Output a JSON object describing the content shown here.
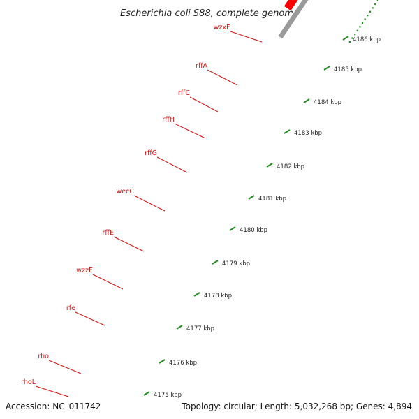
{
  "title": "Escherichia coli S88, complete genome",
  "footer": {
    "accession": "Accession: NC_011742",
    "summary": "Topology: circular; Length: 5,032,268 bp; Genes: 4,894"
  },
  "colors": {
    "forward_gene": "#ff0000",
    "reverse_gene": "#6b8e23",
    "gene_alt": "#ff8c00",
    "unknown_gene": "#cccccc",
    "label_color": "#cc1111",
    "tick_color": "#228b22",
    "backbone": "#9a9a9a"
  },
  "genes": [
    {
      "name": "wzxE",
      "strand": "reverse",
      "color": "unknown_gene"
    },
    {
      "name": "rffA",
      "strand": "reverse",
      "color": "reverse_gene"
    },
    {
      "name": "rffC",
      "strand": "reverse",
      "color": "unknown_gene"
    },
    {
      "name": "rffH",
      "strand": "reverse",
      "color": "reverse_gene"
    },
    {
      "name": "rffG",
      "strand": "reverse",
      "color": "reverse_gene"
    },
    {
      "name": "wecC",
      "strand": "reverse",
      "color": "reverse_gene"
    },
    {
      "name": "rffE",
      "strand": "reverse",
      "color": "reverse_gene"
    },
    {
      "name": "wzzE",
      "strand": "reverse",
      "color": "reverse_gene"
    },
    {
      "name": "rfe",
      "strand": "reverse",
      "color": "reverse_gene"
    },
    {
      "name": "rho",
      "strand": "reverse",
      "color": "gene_alt"
    },
    {
      "name": "rhoL",
      "strand": "reverse",
      "color": "gene_alt"
    }
  ],
  "scale_ticks": [
    "4175 kbp",
    "4176 kbp",
    "4177 kbp",
    "4178 kbp",
    "4179 kbp",
    "4180 kbp",
    "4181 kbp",
    "4182 kbp",
    "4183 kbp",
    "4184 kbp",
    "4185 kbp",
    "4186 kbp"
  ]
}
